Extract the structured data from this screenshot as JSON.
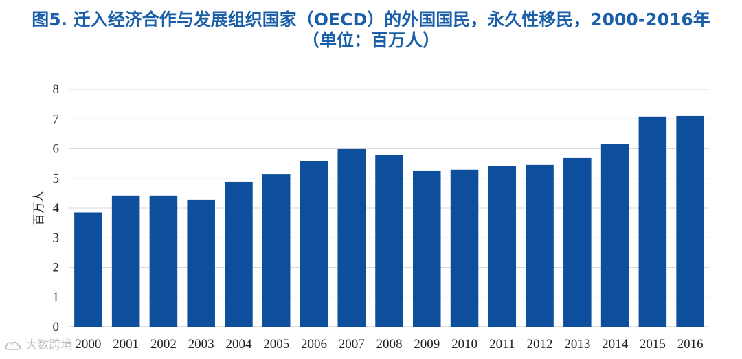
{
  "title": {
    "line1": "图5. 迁入经济合作与发展组织国家（OECD）的外国国民，永久性移民，2000-2016年",
    "line2": "（单位：百万人）"
  },
  "watermark": {
    "text": "大数跨境",
    "icon": "cloud-logo-icon"
  },
  "colors": {
    "bar": "#0d4f9c",
    "title": "#1a5fa8",
    "grid": "#d9d9d9"
  },
  "chart_data": {
    "type": "bar",
    "title": "图5. 迁入经济合作与发展组织国家（OECD）的外国国民，永久性移民，2000-2016年（单位：百万人）",
    "xlabel": "",
    "ylabel": "百万人",
    "ylim": [
      0,
      8
    ],
    "yticks": [
      0,
      1,
      2,
      3,
      4,
      5,
      6,
      7,
      8
    ],
    "grid": true,
    "categories": [
      "2000",
      "2001",
      "2002",
      "2003",
      "2004",
      "2005",
      "2006",
      "2007",
      "2008",
      "2009",
      "2010",
      "2011",
      "2012",
      "2013",
      "2014",
      "2015",
      "2016"
    ],
    "values": [
      3.85,
      4.42,
      4.42,
      4.28,
      4.88,
      5.13,
      5.58,
      5.99,
      5.78,
      5.25,
      5.3,
      5.41,
      5.46,
      5.69,
      6.15,
      7.08,
      7.1
    ]
  }
}
